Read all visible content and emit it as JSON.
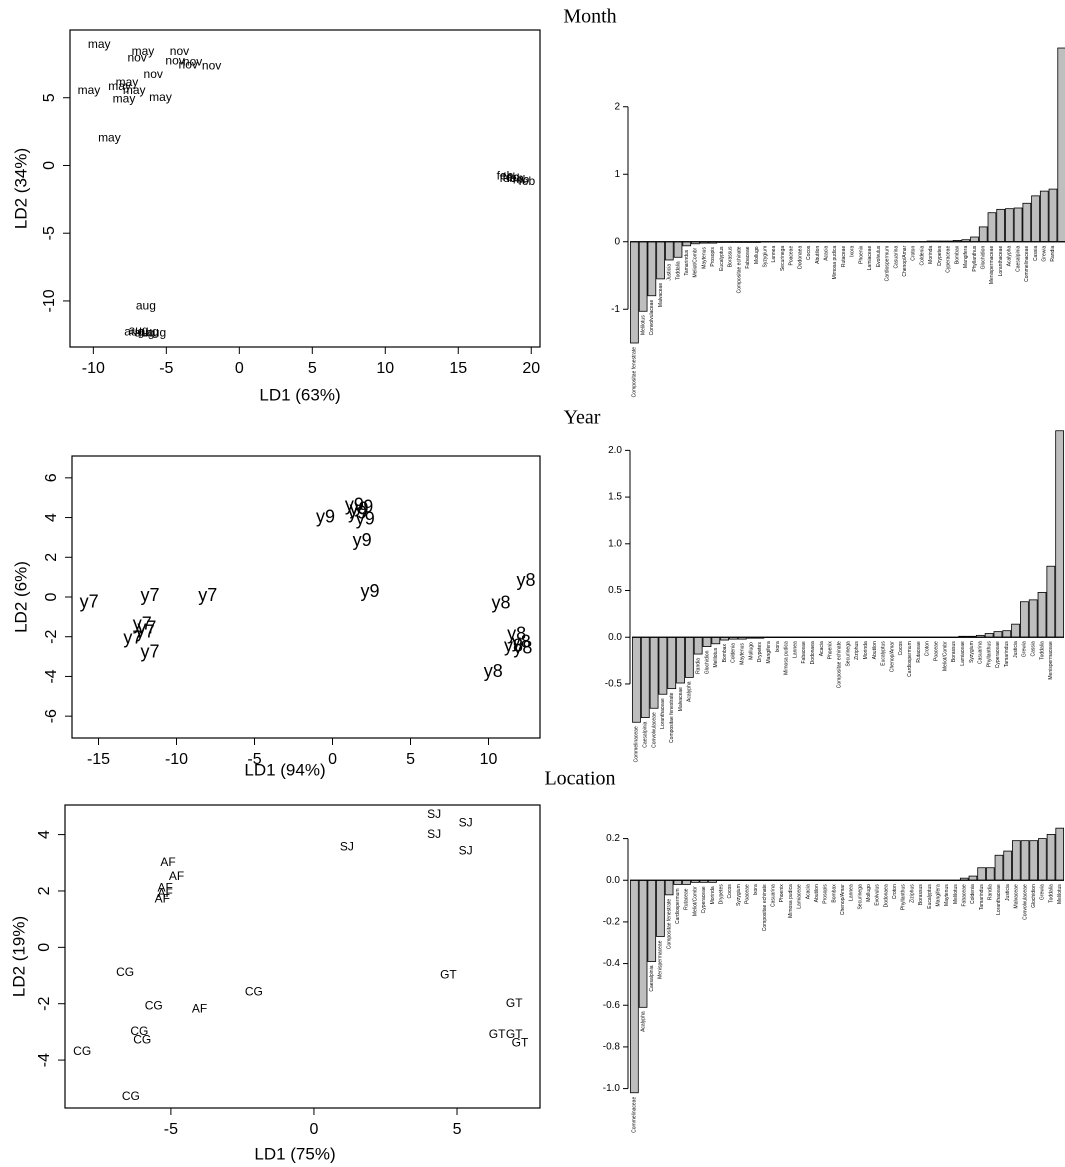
{
  "chart_data": [
    {
      "type": "scatter",
      "title": "Month",
      "x_label": "LD1 (63%)",
      "y_label": "LD2 (34%)",
      "xlim": [
        -11.6,
        20.6
      ],
      "ylim": [
        -13.4,
        10.0
      ],
      "xticks": [
        -10,
        -5,
        0,
        5,
        10,
        15,
        20
      ],
      "yticks": [
        -10,
        -5,
        0,
        5
      ],
      "color": "#000000",
      "x": [
        -9.6,
        -6.6,
        -10.3,
        -7.7,
        -8.2,
        -7.2,
        -7.9,
        -5.4,
        -8.9,
        -4.1,
        -7.0,
        -4.4,
        -3.2,
        -3.5,
        -1.9,
        -5.9,
        18.2,
        18.6,
        18.9,
        19.3,
        18.4,
        19.7,
        -6.4,
        -7.2,
        -6.9,
        -6.5,
        -6.2,
        -5.7
      ],
      "y": [
        8.9,
        8.4,
        5.5,
        6.1,
        5.8,
        5.5,
        4.9,
        5.0,
        2.0,
        8.4,
        7.9,
        7.7,
        7.6,
        7.4,
        7.3,
        6.7,
        -0.8,
        -0.9,
        -1.0,
        -1.1,
        -1.0,
        -1.2,
        -10.4,
        -12.3,
        -12.2,
        -12.4,
        -12.3,
        -12.4
      ],
      "point_labels": [
        "may",
        "may",
        "may",
        "may",
        "may",
        "may",
        "may",
        "may",
        "may",
        "nov",
        "nov",
        "nov",
        "nov",
        "nov",
        "nov",
        "nov",
        "feb",
        "feb",
        "feb",
        "feb",
        "feb",
        "feb",
        "aug",
        "aug",
        "aug",
        "aug",
        "aug",
        "aug"
      ]
    },
    {
      "type": "bar",
      "color": "#bebebe",
      "ylim": [
        -1.5,
        2.9
      ],
      "yticks": [
        -1,
        0,
        1,
        2
      ],
      "categories": [
        "Compositae fenestrate",
        "Melilotus",
        "Convolvulaceae",
        "Malvaceae",
        "Justicia",
        "Toddalia",
        "Tamarindus",
        "Meliot/Combr",
        "Maytenus",
        "Prosopis",
        "Eucalyptus",
        "Borassus",
        "Compositae echinate",
        "Fabaceae",
        "Mollugo",
        "Syzygium",
        "Lannea",
        "Securinega",
        "Poaceae",
        "Dodonaea",
        "Cocos",
        "Abutilon",
        "Acacia",
        "Mimosa pudica",
        "Rutaceae",
        "Ixora",
        "Phoenix",
        "Lamiaceae",
        "Evolvulus",
        "Cardiospermum",
        "Casuarina",
        "Chenop/Amar",
        "Croton",
        "Coldenia",
        "Morinda",
        "Drypetes",
        "Cyperaceae",
        "Bombax",
        "Mangifera",
        "Phyllanthus",
        "Glochidion",
        "Menispermaceae",
        "Loranthaceae",
        "Acalypha",
        "Caesalpinia",
        "Commelinaceae",
        "Cassia",
        "Grewia",
        "Randia",
        null
      ],
      "values": [
        -1.5,
        -1.03,
        -0.8,
        -0.55,
        -0.27,
        -0.23,
        -0.06,
        -0.03,
        -0.02,
        -0.02,
        -0.01,
        -0.01,
        -0.01,
        -0.01,
        -0.01,
        0,
        0,
        0,
        0,
        0,
        0,
        0,
        0,
        0,
        0,
        0,
        0,
        0,
        0,
        0,
        0,
        0,
        0,
        0,
        0.01,
        0.01,
        0.01,
        0.02,
        0.03,
        0.07,
        0.22,
        0.43,
        0.48,
        0.49,
        0.5,
        0.57,
        0.68,
        0.75,
        0.78,
        2.87
      ]
    },
    {
      "type": "scatter",
      "title": "Year",
      "x_label": "LD1 (94%)",
      "y_label": "LD2 (6%)",
      "xlim": [
        -16.7,
        13.3
      ],
      "ylim": [
        -7.1,
        7.1
      ],
      "xticks": [
        -15,
        -10,
        -5,
        0,
        5,
        10
      ],
      "yticks": [
        -6,
        -4,
        -2,
        0,
        2,
        4,
        6
      ],
      "color": "#000000",
      "x": [
        -0.45,
        1.4,
        1.7,
        2.0,
        1.6,
        2.1,
        1.9,
        2.4,
        -15.6,
        -11.7,
        -8.0,
        -12.2,
        -11.9,
        -12.0,
        -12.8,
        -11.7,
        12.4,
        10.8,
        11.8,
        12.1,
        11.6,
        12.2,
        10.3
      ],
      "y": [
        4.0,
        4.6,
        4.4,
        4.5,
        4.2,
        3.9,
        2.8,
        0.25,
        -0.3,
        0.05,
        0.05,
        -1.4,
        -1.6,
        -1.8,
        -2.1,
        -2.8,
        0.8,
        -0.35,
        -1.9,
        -2.3,
        -2.5,
        -2.6,
        -3.8
      ],
      "point_labels": [
        "y9",
        "y9",
        "y9",
        "y9",
        "y9",
        "y9",
        "y9",
        "y9",
        "y7",
        "y7",
        "y7",
        "y7",
        "y7",
        "y7",
        "y7",
        "y7",
        "y8",
        "y8",
        "y8",
        "y8",
        "y8",
        "y8",
        "y8"
      ]
    },
    {
      "type": "bar",
      "color": "#bebebe",
      "ylim": [
        -0.95,
        2.25
      ],
      "yticks": [
        {
          "value": -0.5,
          "label": "-0.5"
        },
        {
          "value": 0,
          "label": "0.0"
        },
        0.5,
        {
          "value": 1,
          "label": "1.0"
        },
        1.5,
        {
          "value": 2,
          "label": "2.0"
        }
      ],
      "categories": [
        "Commelinaceae",
        "Caesalpinia",
        "Convolvulaceae",
        "Loranthaceae",
        "Compositae fenestrate",
        "Malvaceae",
        "Acalypha",
        "Randia",
        "Glochidion",
        "Melilotus",
        "Bombax",
        "Coldenia",
        "Maytenus",
        "Mollugo",
        "Drypetes",
        "Mangifera",
        "Ixora",
        "Mimosa pudica",
        "Lannea",
        "Fabaceae",
        "Dodonaea",
        "Acacia",
        "Phoenix",
        "Compositae echinate",
        "Securinega",
        "Ziziphus",
        "Morinda",
        "Abutilon",
        "Eucalyptus",
        "Chenop/Amar",
        "Cocos",
        "Cardiospermum",
        "Rutaceae",
        "Croton",
        "Poaceae",
        "Meliot/Combr",
        "Borassus",
        "Lamiaceae",
        "Syzygium",
        "Casuarina",
        "Phyllanthus",
        "Cyperaceae",
        "Tamarindus",
        "Justicia",
        "Grewia",
        "Cassia",
        "Toddalia",
        "Menispermaceae",
        null
      ],
      "values": [
        -0.91,
        -0.86,
        -0.76,
        -0.61,
        -0.55,
        -0.49,
        -0.43,
        -0.18,
        -0.1,
        -0.07,
        -0.03,
        -0.02,
        -0.02,
        -0.01,
        -0.01,
        0,
        0,
        0,
        0,
        0,
        0,
        0,
        0,
        0,
        0,
        0,
        0,
        0,
        0,
        0,
        0,
        0,
        0,
        0,
        0,
        0,
        0,
        0.01,
        0.01,
        0.02,
        0.04,
        0.06,
        0.07,
        0.14,
        0.38,
        0.4,
        0.48,
        0.76,
        2.21
      ]
    },
    {
      "type": "scatter",
      "title": "Location",
      "x_label": "LD1 (75%)",
      "y_label": "LD2 (19%)",
      "xlim": [
        -8.7,
        7.9
      ],
      "ylim": [
        -5.7,
        5.05
      ],
      "xticks": [
        -5,
        0,
        5
      ],
      "yticks": [
        -4,
        -2,
        0,
        2,
        4
      ],
      "color": "#000000",
      "x": [
        4.2,
        4.2,
        5.3,
        1.15,
        5.3,
        -5.1,
        -4.8,
        -5.2,
        -5.2,
        -5.3,
        -4.0,
        -6.6,
        -5.6,
        -2.1,
        -6.1,
        -6.0,
        -8.1,
        -6.4,
        4.7,
        7.0,
        6.4,
        7.0,
        7.2
      ],
      "y": [
        4.7,
        4.0,
        4.4,
        3.55,
        3.4,
        3.0,
        2.5,
        2.1,
        1.9,
        1.7,
        -2.2,
        -0.9,
        -2.1,
        -1.6,
        -3.0,
        -3.3,
        -3.7,
        -5.3,
        -1.0,
        -2.0,
        -3.1,
        -3.1,
        -3.4
      ],
      "point_labels": [
        "SJ",
        "SJ",
        "SJ",
        "SJ",
        "SJ",
        "AF",
        "AF",
        "AF",
        "AF",
        "AF",
        "AF",
        "CG",
        "CG",
        "CG",
        "CG",
        "CG",
        "CG",
        "CG",
        "GT",
        "GT",
        "GT",
        "GT",
        "GT"
      ]
    },
    {
      "type": "bar",
      "color": "#bebebe",
      "ylim": [
        -1.05,
        0.27
      ],
      "yticks": [
        {
          "value": -1,
          "label": "-1.0"
        },
        -0.8,
        -0.6,
        -0.4,
        -0.2,
        {
          "value": 0,
          "label": "0.0"
        },
        0.2
      ],
      "categories": [
        "Commelinaceae",
        "Acalypha",
        "Caesalpinia",
        "Menispermaceae",
        "Compositae fenestrate",
        "Cardiospermum",
        "Rutaceae",
        "Meliot/Combr",
        "Cyperaceae",
        "Morinda",
        "Drypetes",
        "Cocos",
        "Syzygium",
        "Poaceae",
        "Ixora",
        "Compositae echinate",
        "Casuarina",
        "Phoenix",
        "Mimosa pudica",
        "Lamiaceae",
        "Acacia",
        "Abutilon",
        "Prosopis",
        "Bombax",
        "Chenop/Amar",
        "Lannea",
        "Securinega",
        "Mollugo",
        "Evolvulus",
        "Dodonaea",
        "Croton",
        "Phyllanthus",
        "Ziziphus",
        "Borassus",
        "Eucalyptus",
        "Mangifera",
        "Maytenus",
        "Melilotus",
        "Fabaceae",
        "Coldenia",
        "Tamarindus",
        "Randia",
        "Loranthaceae",
        "Justicia",
        "Malvaceae",
        "Convolvulaceae",
        "Glochidion",
        "Grewia",
        "Toddalia",
        "Melilotus"
      ],
      "values": [
        -1.02,
        -0.61,
        -0.39,
        -0.27,
        -0.07,
        -0.02,
        -0.02,
        -0.01,
        -0.01,
        -0.01,
        0,
        0,
        0,
        0,
        0,
        0,
        0,
        0,
        0,
        0,
        0,
        0,
        0,
        0,
        0,
        0,
        0,
        0,
        0,
        0,
        0,
        0,
        0,
        0,
        0,
        0,
        0,
        0,
        0.01,
        0.02,
        0.06,
        0.06,
        0.12,
        0.14,
        0.19,
        0.19,
        0.19,
        0.2,
        0.22,
        0.25
      ]
    }
  ]
}
